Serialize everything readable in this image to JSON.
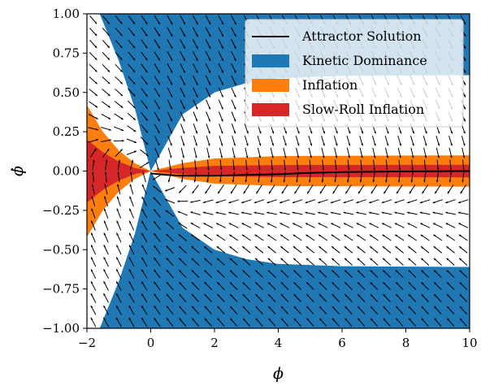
{
  "chart_data": {
    "type": "area",
    "title": "",
    "xlabel": "ϕ",
    "ylabel": "ϕ̇",
    "xlim": [
      -2,
      10
    ],
    "ylim": [
      -1,
      1
    ],
    "x_ticks": [
      -2,
      0,
      2,
      4,
      6,
      8,
      10
    ],
    "x_tick_labels": [
      "−2",
      "0",
      "2",
      "4",
      "6",
      "8",
      "10"
    ],
    "y_ticks": [
      1,
      0.75,
      0.5,
      0.25,
      0,
      -0.25,
      -0.5,
      -0.75,
      -1
    ],
    "y_tick_labels": [
      "1.00",
      "0.75",
      "0.50",
      "0.25",
      "0.00",
      "−0.25",
      "−0.50",
      "−0.75",
      "−1.00"
    ],
    "grid": false,
    "legend_position": "top-right",
    "legend": [
      {
        "label": "Attractor Solution",
        "color": "#000000",
        "kind": "line"
      },
      {
        "label": "Kinetic Dominance",
        "color": "#1f77b4",
        "kind": "patch"
      },
      {
        "label": "Inflation",
        "color": "#ff7f0e",
        "kind": "patch"
      },
      {
        "label": "Slow-Roll Inflation",
        "color": "#d62728",
        "kind": "patch"
      }
    ],
    "regions": {
      "kinetic_dominance_boundary": [
        {
          "x": -1.6,
          "y": 1.0
        },
        {
          "x": -1.0,
          "y": 0.7
        },
        {
          "x": -0.5,
          "y": 0.4
        },
        {
          "x": 0.0,
          "y": 0.0
        },
        {
          "x": 1.0,
          "y": 0.36
        },
        {
          "x": 2.0,
          "y": 0.5
        },
        {
          "x": 3.0,
          "y": 0.56
        },
        {
          "x": 4.0,
          "y": 0.59
        },
        {
          "x": 6.0,
          "y": 0.605
        },
        {
          "x": 10.0,
          "y": 0.61
        }
      ],
      "inflation_boundary": [
        {
          "x": -2.0,
          "y": 0.42
        },
        {
          "x": -1.5,
          "y": 0.25
        },
        {
          "x": -1.0,
          "y": 0.13
        },
        {
          "x": -0.5,
          "y": 0.05
        },
        {
          "x": 0.0,
          "y": 0.0
        },
        {
          "x": 1.0,
          "y": 0.05
        },
        {
          "x": 2.0,
          "y": 0.08
        },
        {
          "x": 4.0,
          "y": 0.095
        },
        {
          "x": 10.0,
          "y": 0.1
        }
      ],
      "slow_roll_boundary": [
        {
          "x": -2.0,
          "y": 0.2
        },
        {
          "x": -1.5,
          "y": 0.12
        },
        {
          "x": -1.0,
          "y": 0.06
        },
        {
          "x": -0.5,
          "y": 0.02
        },
        {
          "x": 0.0,
          "y": 0.0
        },
        {
          "x": 1.0,
          "y": 0.02
        },
        {
          "x": 2.0,
          "y": 0.033
        },
        {
          "x": 4.0,
          "y": 0.038
        },
        {
          "x": 10.0,
          "y": 0.04
        }
      ]
    },
    "attractor_solution": [
      {
        "x": 0.0,
        "y": -0.015
      },
      {
        "x": 0.5,
        "y": -0.025
      },
      {
        "x": 1.0,
        "y": -0.03
      },
      {
        "x": 2.0,
        "y": -0.03
      },
      {
        "x": 3.0,
        "y": -0.025
      },
      {
        "x": 4.0,
        "y": -0.02
      },
      {
        "x": 5.0,
        "y": -0.012
      },
      {
        "x": 6.0,
        "y": -0.006
      },
      {
        "x": 8.0,
        "y": -0.002
      },
      {
        "x": 10.0,
        "y": 0.0
      }
    ],
    "vector_field": {
      "x_count": 30,
      "y_count": 26
    }
  }
}
